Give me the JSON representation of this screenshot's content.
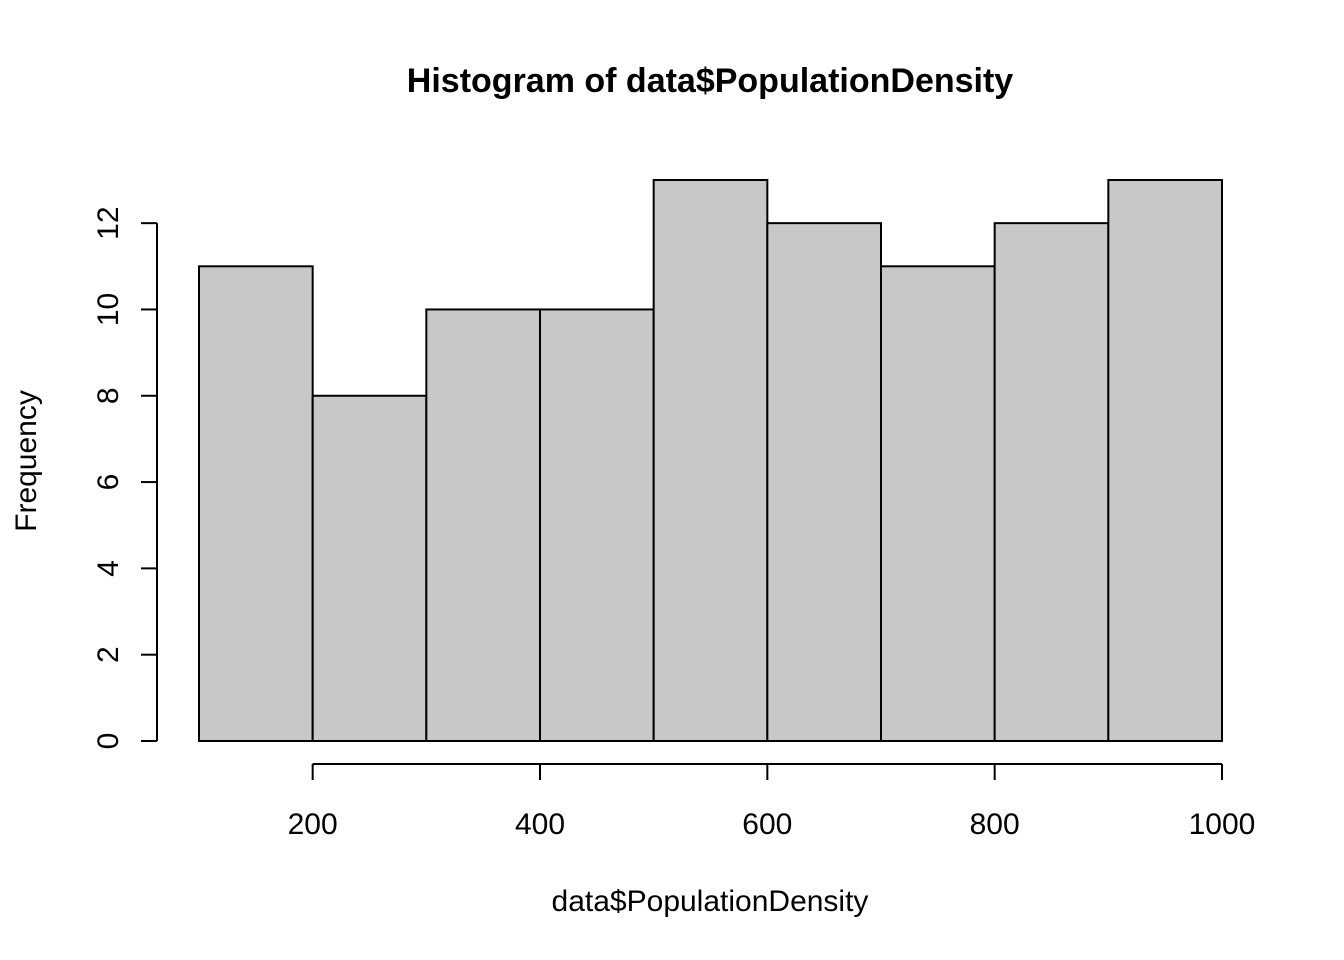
{
  "chart_data": {
    "type": "bar",
    "histogram": true,
    "title": "Histogram of data$PopulationDensity",
    "xlabel": "data$PopulationDensity",
    "ylabel": "Frequency",
    "bins": [
      {
        "start": 100,
        "end": 200,
        "count": 11
      },
      {
        "start": 200,
        "end": 300,
        "count": 8
      },
      {
        "start": 300,
        "end": 400,
        "count": 10
      },
      {
        "start": 400,
        "end": 500,
        "count": 10
      },
      {
        "start": 500,
        "end": 600,
        "count": 13
      },
      {
        "start": 600,
        "end": 700,
        "count": 12
      },
      {
        "start": 700,
        "end": 800,
        "count": 11
      },
      {
        "start": 800,
        "end": 900,
        "count": 12
      },
      {
        "start": 900,
        "end": 1000,
        "count": 13
      }
    ],
    "xlim": [
      100,
      1000
    ],
    "ylim": [
      0,
      13
    ],
    "x_ticks": [
      200,
      400,
      600,
      800,
      1000
    ],
    "y_ticks": [
      0,
      2,
      4,
      6,
      8,
      10,
      12
    ],
    "bar_color": "#c8c8c8",
    "edge_color": "#000000",
    "grid": false,
    "legend": "none"
  }
}
